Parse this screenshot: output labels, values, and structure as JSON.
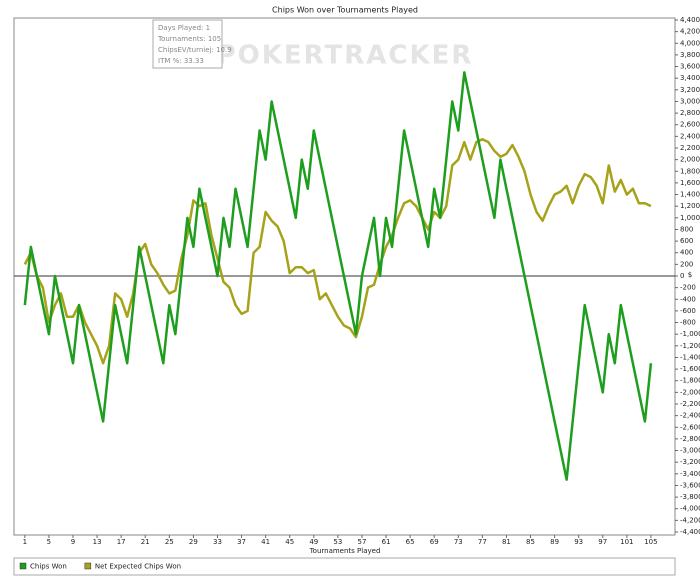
{
  "chart_data": {
    "type": "line",
    "title": "Chips Won over Tournaments Played",
    "x_label": "Tournaments Played",
    "y_label": "$",
    "watermark": "POKERTRACKER",
    "annotations": [
      "Days Played: 1",
      "Tournaments: 105",
      "ChipsEV/turniej: 10.9",
      "ITM %: 33.33"
    ],
    "x": [
      1,
      2,
      3,
      4,
      5,
      6,
      7,
      8,
      9,
      10,
      11,
      12,
      13,
      14,
      15,
      16,
      17,
      18,
      19,
      20,
      21,
      22,
      23,
      24,
      25,
      26,
      27,
      28,
      29,
      30,
      31,
      32,
      33,
      34,
      35,
      36,
      37,
      38,
      39,
      40,
      41,
      42,
      43,
      44,
      45,
      46,
      47,
      48,
      49,
      50,
      51,
      52,
      53,
      54,
      55,
      56,
      57,
      58,
      59,
      60,
      61,
      62,
      63,
      64,
      65,
      66,
      67,
      68,
      69,
      70,
      71,
      72,
      73,
      74,
      75,
      76,
      77,
      78,
      79,
      80,
      81,
      82,
      83,
      84,
      85,
      86,
      87,
      88,
      89,
      90,
      91,
      92,
      93,
      94,
      95,
      96,
      97,
      98,
      99,
      100,
      101,
      102,
      103,
      104,
      105
    ],
    "series": [
      {
        "name": "Chips Won",
        "color": "#1e9e1e",
        "values": [
          -500,
          500,
          0,
          -500,
          -1000,
          0,
          -500,
          -1000,
          -1500,
          -500,
          -1000,
          -1500,
          -2000,
          -2500,
          -1500,
          -500,
          -1000,
          -1500,
          -500,
          500,
          0,
          -500,
          -1000,
          -1500,
          -500,
          -1000,
          0,
          1000,
          500,
          1500,
          1000,
          500,
          0,
          1000,
          500,
          1500,
          1000,
          500,
          1500,
          2500,
          2000,
          3000,
          2500,
          2000,
          1500,
          1000,
          2000,
          1500,
          2500,
          2000,
          1500,
          1000,
          500,
          0,
          -500,
          -1000,
          0,
          500,
          1000,
          0,
          1000,
          500,
          1500,
          2500,
          2000,
          1500,
          1000,
          500,
          1500,
          1000,
          2000,
          3000,
          2500,
          3500,
          3000,
          2500,
          2000,
          1500,
          1000,
          2000,
          1500,
          1000,
          500,
          0,
          -500,
          -1000,
          -1500,
          -2000,
          -2500,
          -3000,
          -3500,
          -2500,
          -1500,
          -500,
          -1000,
          -1500,
          -2000,
          -1000,
          -1500,
          -500,
          -1000,
          -1500,
          -2000,
          -2500,
          -1500
        ]
      },
      {
        "name": "Net Expected Chips Won",
        "color": "#a6a21a",
        "values": [
          200,
          400,
          0,
          -200,
          -800,
          -500,
          -300,
          -700,
          -700,
          -500,
          -800,
          -1000,
          -1200,
          -1500,
          -1200,
          -300,
          -400,
          -700,
          -300,
          400,
          550,
          200,
          50,
          -150,
          -300,
          -250,
          300,
          700,
          1300,
          1200,
          1250,
          700,
          300,
          -100,
          -200,
          -500,
          -650,
          -600,
          400,
          500,
          1100,
          950,
          850,
          600,
          50,
          150,
          150,
          50,
          100,
          -400,
          -300,
          -500,
          -700,
          -850,
          -900,
          -1050,
          -700,
          -200,
          -150,
          200,
          500,
          700,
          1000,
          1250,
          1300,
          1200,
          1000,
          800,
          1100,
          1000,
          1200,
          1900,
          2000,
          2300,
          2000,
          2300,
          2350,
          2300,
          2150,
          2050,
          2100,
          2250,
          2050,
          1800,
          1400,
          1100,
          950,
          1200,
          1400,
          1450,
          1550,
          1250,
          1550,
          1750,
          1700,
          1550,
          1250,
          1900,
          1450,
          1650,
          1400,
          1500,
          1250,
          1250,
          1200
        ]
      }
    ],
    "xlim": [
      -0.8,
      109
    ],
    "xticks": [
      1,
      5,
      9,
      13,
      17,
      21,
      25,
      29,
      33,
      37,
      41,
      45,
      49,
      53,
      57,
      61,
      65,
      69,
      73,
      77,
      81,
      85,
      89,
      93,
      97,
      101,
      105
    ],
    "ylim": [
      -4400,
      4400
    ],
    "yticks": [
      {
        "value": -4400,
        "label": "-4,400"
      },
      {
        "value": -4200,
        "label": "-4,200"
      },
      {
        "value": -4000,
        "label": "-4,000"
      },
      {
        "value": -3800,
        "label": "-3,800"
      },
      {
        "value": -3600,
        "label": "-3,600"
      },
      {
        "value": -3400,
        "label": "-3,400"
      },
      {
        "value": -3200,
        "label": "-3,200"
      },
      {
        "value": -3000,
        "label": "-3,000"
      },
      {
        "value": -2800,
        "label": "-2,800"
      },
      {
        "value": -2600,
        "label": "-2,600"
      },
      {
        "value": -2400,
        "label": "-2,400"
      },
      {
        "value": -2200,
        "label": "-2,200"
      },
      {
        "value": -2000,
        "label": "-2,000"
      },
      {
        "value": -1800,
        "label": "-1,800"
      },
      {
        "value": -1600,
        "label": "-1,600"
      },
      {
        "value": -1400,
        "label": "-1,400"
      },
      {
        "value": -1200,
        "label": "-1,200"
      },
      {
        "value": -1000,
        "label": "-1,000"
      },
      -800,
      -600,
      -400,
      -200,
      0,
      200,
      400,
      600,
      800,
      {
        "value": 1000,
        "label": "1,000"
      },
      {
        "value": 1200,
        "label": "1,200"
      },
      {
        "value": 1400,
        "label": "1,400"
      },
      {
        "value": 1600,
        "label": "1,600"
      },
      {
        "value": 1800,
        "label": "1,800"
      },
      {
        "value": 2000,
        "label": "2,000"
      },
      {
        "value": 2200,
        "label": "2,200"
      },
      {
        "value": 2400,
        "label": "2,400"
      },
      {
        "value": 2600,
        "label": "2,600"
      },
      {
        "value": 2800,
        "label": "2,800"
      },
      {
        "value": 3000,
        "label": "3,000"
      },
      {
        "value": 3200,
        "label": "3,200"
      },
      {
        "value": 3400,
        "label": "3,400"
      },
      {
        "value": 3600,
        "label": "3,600"
      },
      {
        "value": 3800,
        "label": "3,800"
      },
      {
        "value": 4000,
        "label": "4,000"
      },
      {
        "value": 4200,
        "label": "4,200"
      },
      {
        "value": 4400,
        "label": "4,400"
      }
    ],
    "zero_line": true,
    "legend": "bottom-left"
  }
}
